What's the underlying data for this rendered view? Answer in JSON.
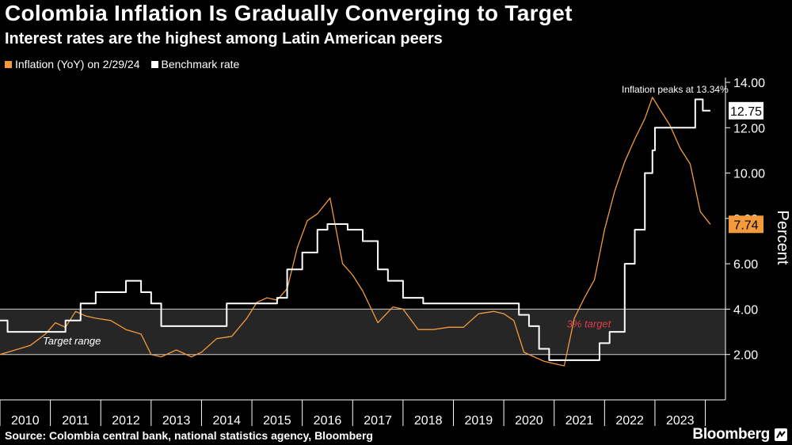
{
  "title": "Colombia Inflation Is Gradually Converging to Target",
  "subtitle": "Interest rates are the highest among Latin American peers",
  "source": "Source: Colombia central bank, national statistics agency, Bloomberg",
  "brand": "Bloomberg",
  "chart_data": {
    "type": "line",
    "ylabel": "Percent",
    "ylim": [
      0,
      14
    ],
    "yticks": [
      "2.00",
      "4.00",
      "6.00",
      "8.00",
      "10.00",
      "12.00",
      "14.00"
    ],
    "ytick_values": [
      2,
      4,
      6,
      8,
      10,
      12,
      14
    ],
    "xlim": [
      2010,
      2024.4
    ],
    "xticks": [
      "2010",
      "2011",
      "2012",
      "2013",
      "2014",
      "2015",
      "2016",
      "2017",
      "2018",
      "2019",
      "2020",
      "2021",
      "2022",
      "2023"
    ],
    "target_range": {
      "low": 2,
      "high": 4,
      "label": "Target range"
    },
    "target_label": "3% target",
    "annotation": "Inflation peaks at 13.34%",
    "legend": [
      {
        "name": "Inflation (YoY) on 2/29/24",
        "color": "#f39a3d"
      },
      {
        "name": "Benchmark rate",
        "color": "#ffffff"
      }
    ],
    "series": [
      {
        "name": "Inflation (YoY) on 2/29/24",
        "color": "#f39a3d",
        "last_label": "7.74",
        "x": [
          2010.0,
          2010.3,
          2010.6,
          2010.9,
          2011.1,
          2011.3,
          2011.5,
          2011.7,
          2011.9,
          2012.2,
          2012.5,
          2012.8,
          2013.0,
          2013.2,
          2013.5,
          2013.8,
          2014.0,
          2014.3,
          2014.6,
          2014.9,
          2015.1,
          2015.3,
          2015.5,
          2015.7,
          2015.9,
          2016.1,
          2016.3,
          2016.55,
          2016.8,
          2017.0,
          2017.2,
          2017.5,
          2017.8,
          2018.0,
          2018.3,
          2018.6,
          2018.9,
          2019.2,
          2019.5,
          2019.8,
          2020.0,
          2020.2,
          2020.4,
          2020.6,
          2020.8,
          2021.0,
          2021.2,
          2021.4,
          2021.6,
          2021.8,
          2022.0,
          2022.2,
          2022.4,
          2022.6,
          2022.8,
          2022.95,
          2023.1,
          2023.3,
          2023.5,
          2023.7,
          2023.9,
          2024.1
        ],
        "y": [
          2.0,
          2.2,
          2.4,
          2.9,
          3.4,
          3.2,
          3.9,
          3.7,
          3.6,
          3.5,
          3.1,
          2.9,
          2.0,
          1.9,
          2.2,
          1.9,
          2.1,
          2.7,
          2.8,
          3.6,
          4.3,
          4.5,
          4.4,
          4.9,
          6.7,
          7.9,
          8.2,
          8.9,
          6.0,
          5.5,
          4.8,
          3.4,
          4.1,
          4.0,
          3.1,
          3.1,
          3.2,
          3.2,
          3.8,
          3.9,
          3.8,
          3.5,
          2.1,
          1.9,
          1.7,
          1.6,
          1.5,
          3.6,
          4.5,
          5.3,
          7.5,
          9.2,
          10.5,
          11.5,
          12.4,
          13.34,
          12.8,
          12.1,
          11.1,
          10.4,
          8.3,
          7.74
        ]
      },
      {
        "name": "Benchmark rate",
        "color": "#ffffff",
        "last_label": "12.75",
        "x": [
          2010.0,
          2010.15,
          2011.0,
          2011.3,
          2011.6,
          2011.9,
          2012.5,
          2012.8,
          2013.0,
          2013.2,
          2014.2,
          2014.5,
          2015.5,
          2015.7,
          2016.0,
          2016.3,
          2016.5,
          2016.9,
          2017.2,
          2017.5,
          2017.7,
          2018.0,
          2018.4,
          2019.0,
          2020.1,
          2020.3,
          2020.5,
          2020.7,
          2020.9,
          2021.3,
          2021.75,
          2021.9,
          2022.1,
          2022.4,
          2022.6,
          2022.8,
          2022.95,
          2023.0,
          2023.8,
          2023.95,
          2024.1
        ],
        "y": [
          3.5,
          3.0,
          3.0,
          3.5,
          4.25,
          4.75,
          5.25,
          4.75,
          4.25,
          3.25,
          3.25,
          4.25,
          4.5,
          5.75,
          6.5,
          7.5,
          7.75,
          7.5,
          7.0,
          5.75,
          5.25,
          4.5,
          4.25,
          4.25,
          4.25,
          3.75,
          3.25,
          2.25,
          1.75,
          1.75,
          1.75,
          2.5,
          3.0,
          6.0,
          7.5,
          10.0,
          11.0,
          12.0,
          13.25,
          12.75,
          12.75
        ]
      }
    ]
  }
}
